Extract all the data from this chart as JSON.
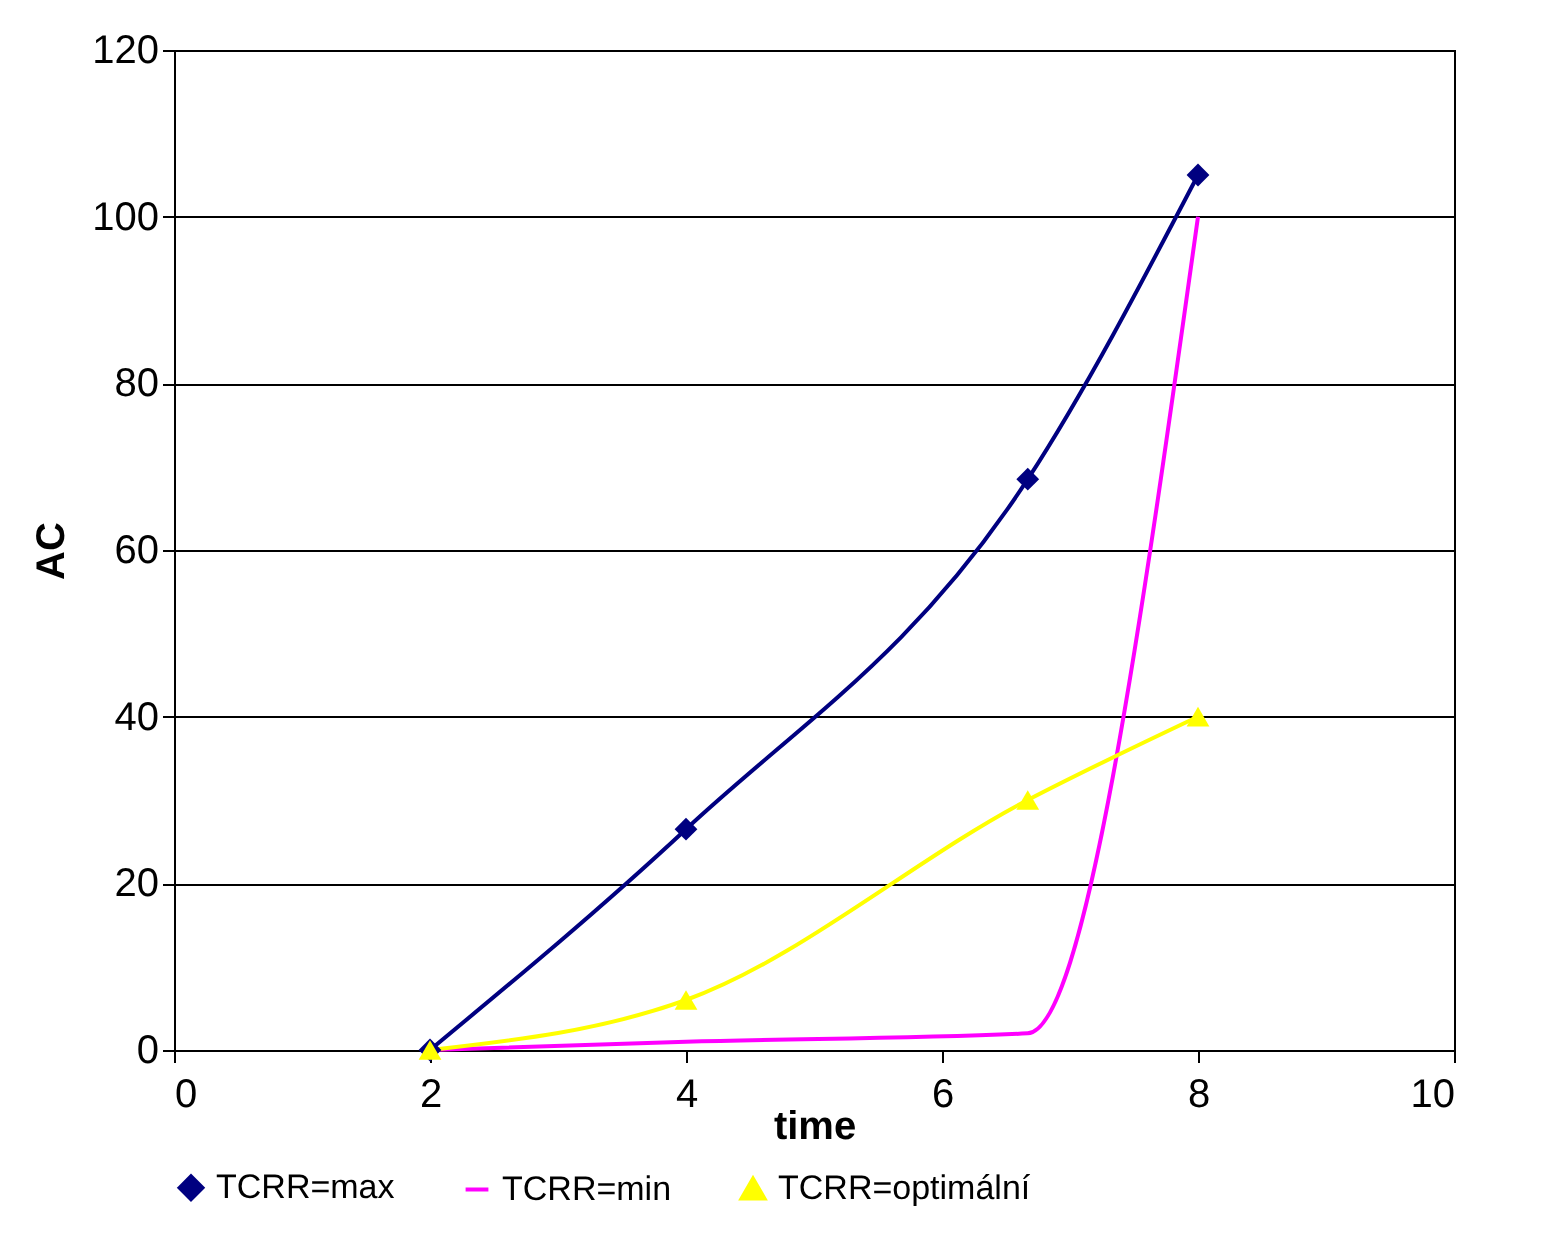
{
  "chart_data": {
    "type": "line",
    "xlabel": "time",
    "ylabel": "AC",
    "xlim": [
      0,
      10
    ],
    "xticks": [
      0,
      2,
      4,
      6,
      8,
      10
    ],
    "ylim": [
      0,
      120
    ],
    "yticks": [
      0,
      20,
      40,
      60,
      80,
      100,
      120
    ],
    "grid": "y",
    "legend": "bottom",
    "series": [
      {
        "name": "TCRR=max",
        "color": "#000080",
        "marker": "diamond",
        "x": [
          2,
          4,
          6.67,
          8
        ],
        "values": [
          0,
          26.5,
          68.5,
          105
        ]
      },
      {
        "name": "TCRR=min",
        "color": "#ff00ff",
        "marker": "none",
        "x": [
          2,
          4,
          6.67,
          8
        ],
        "values": [
          0,
          1,
          2,
          100
        ]
      },
      {
        "name": "TCRR=optimální",
        "color": "#ffff00",
        "marker": "triangle",
        "x": [
          2,
          4,
          6.67,
          8
        ],
        "values": [
          0,
          6,
          30,
          40
        ]
      }
    ]
  }
}
